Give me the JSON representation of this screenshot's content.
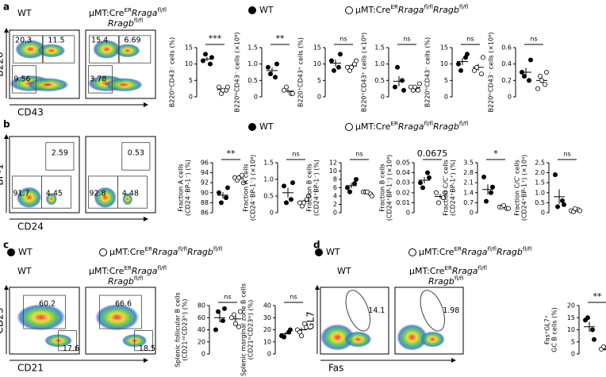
{
  "wt": "WT",
  "genotype": [
    {
      "text": "μMT:Cre",
      "style": "normal"
    },
    {
      "text": "ER",
      "style": "sup"
    },
    {
      "text": "Rraga",
      "style": "italic"
    },
    {
      "text": "fl/fl",
      "style": "sup"
    },
    {
      "text": "Rragb",
      "style": "italic"
    },
    {
      "text": "fl/fl",
      "style": "sup"
    }
  ],
  "panels": [
    {
      "label": "a",
      "ylabel": "B220",
      "xlabel": "CD43",
      "gates": [
        [
          20.3,
          11.5,
          9.56
        ],
        [
          15.4,
          6.69,
          3.78
        ]
      ]
    },
    {
      "label": "b",
      "ylabel": "BP-1",
      "xlabel": "CD24",
      "gates": [
        [
          2.59,
          91.7,
          4.45
        ],
        [
          0.53,
          92.8,
          4.48
        ]
      ]
    },
    {
      "label": "c",
      "ylabel": "CD23",
      "xlabel": "CD21",
      "gates": [
        [
          60.2,
          17.6
        ],
        [
          66.6,
          18.5
        ]
      ]
    },
    {
      "label": "d",
      "ylabel": "GL7",
      "xlabel": "Fas",
      "gates": [
        [
          14.1
        ],
        [
          1.98
        ]
      ]
    }
  ],
  "chart_data": [
    {
      "type": "strip",
      "ylabel": [
        "B220ˡᵒCD43⁻ cells (%)"
      ],
      "ylim": [
        0,
        15
      ],
      "yticks": [
        0,
        5,
        10,
        15
      ],
      "sig": "***",
      "series": [
        {
          "filled": true,
          "values": [
            11,
            10,
            13,
            12
          ]
        },
        {
          "filled": false,
          "values": [
            3,
            2,
            1,
            3,
            2
          ]
        }
      ]
    },
    {
      "type": "strip",
      "ylabel": [
        "B220ˡᵒCD43⁻ cells (×10⁶)"
      ],
      "ylim": [
        0,
        1.5
      ],
      "yticks": [
        0,
        0.5,
        {
          "value": 1,
          "label": "1.0"
        },
        1.5
      ],
      "sig": "**",
      "series": [
        {
          "filled": true,
          "values": [
            0.9,
            0.6,
            0.7,
            1.0
          ]
        },
        {
          "filled": false,
          "values": [
            0.2,
            0.1,
            0.3,
            0.1
          ]
        }
      ]
    },
    {
      "type": "strip",
      "ylabel": [
        "B220⁺CD43⁺ cells (%)"
      ],
      "ylim": [
        0,
        15
      ],
      "yticks": [
        0,
        5,
        10,
        15
      ],
      "sig": "ns",
      "series": [
        {
          "filled": true,
          "values": [
            11,
            9,
            8,
            13
          ]
        },
        {
          "filled": false,
          "values": [
            9,
            10,
            8,
            11,
            9
          ]
        }
      ]
    },
    {
      "type": "strip",
      "ylabel": [
        "B220⁺CD43⁺ cells (×10⁶)"
      ],
      "ylim": [
        0,
        1.5
      ],
      "yticks": [
        0,
        0.5,
        {
          "value": 1,
          "label": "1.0"
        },
        1.5
      ],
      "sig": "ns",
      "series": [
        {
          "filled": true,
          "values": [
            0.3,
            0.5,
            0.9,
            0.2
          ]
        },
        {
          "filled": false,
          "values": [
            0.3,
            0.2,
            0.2,
            0.4,
            0.3
          ]
        }
      ]
    },
    {
      "type": "strip",
      "ylabel": [
        "B220ʰⁱCD43⁻ cells (%)"
      ],
      "ylim": [
        0,
        15
      ],
      "yticks": [
        0,
        5,
        10,
        15
      ],
      "sig": "ns",
      "series": [
        {
          "filled": true,
          "values": [
            10,
            12,
            8,
            13
          ]
        },
        {
          "filled": false,
          "values": [
            8,
            7,
            9,
            12
          ]
        }
      ]
    },
    {
      "type": "strip",
      "ylabel": [
        "B220ʰⁱCD43⁻ cells (×10⁶)"
      ],
      "ylim": [
        0,
        0.6
      ],
      "yticks": [
        0,
        0.2,
        0.4,
        0.6
      ],
      "sig": "ns",
      "series": [
        {
          "filled": true,
          "values": [
            0.3,
            0.2,
            0.25,
            0.45
          ]
        },
        {
          "filled": false,
          "values": [
            0.1,
            0.15,
            0.25,
            0.3,
            0.2
          ]
        }
      ]
    },
    {
      "type": "strip",
      "ylabel": [
        "Fraction A cells",
        "(CD24⁻BP-1⁻) (%)"
      ],
      "ylim": [
        86,
        96
      ],
      "yticks": [
        86,
        88,
        90,
        92,
        94,
        96
      ],
      "sig": "**",
      "series": [
        {
          "filled": true,
          "values": [
            90,
            89,
            88,
            91
          ]
        },
        {
          "filled": false,
          "values": [
            93,
            93.5,
            92.5,
            92,
            93
          ]
        }
      ]
    },
    {
      "type": "strip",
      "ylabel": [
        "Fraction A cells",
        "(CD24⁻BP-1⁻) (×10⁶)"
      ],
      "ylim": [
        0,
        1.5
      ],
      "yticks": [
        0,
        0.5,
        {
          "value": 1,
          "label": "1.0"
        },
        1.5
      ],
      "sig": "ns",
      "series": [
        {
          "filled": true,
          "values": [
            0.8,
            0.4,
            0.3,
            0.9
          ]
        },
        {
          "filled": false,
          "values": [
            0.3,
            0.4,
            0.2,
            0.5,
            0.3
          ]
        }
      ]
    },
    {
      "type": "strip",
      "ylabel": [
        "Fraction B cells",
        "(CD24⁺BP-1⁻) (%)"
      ],
      "ylim": [
        0,
        12
      ],
      "yticks": [
        0,
        2,
        4,
        6,
        8,
        10,
        12
      ],
      "sig": "ns",
      "series": [
        {
          "filled": true,
          "values": [
            6,
            7,
            5,
            8
          ]
        },
        {
          "filled": false,
          "values": [
            5,
            4.5,
            5,
            4,
            5
          ]
        }
      ]
    },
    {
      "type": "strip",
      "ylabel": [
        "Fraction B cells",
        "(CD24⁺BP-1⁻) (×10⁶)"
      ],
      "ylim": [
        0,
        0.05
      ],
      "yticks": [
        0,
        0.01,
        0.02,
        0.03,
        0.04,
        0.05
      ],
      "sig": "0.0675",
      "series": [
        {
          "filled": true,
          "values": [
            0.03,
            0.04,
            0.025,
            0.035
          ]
        },
        {
          "filled": false,
          "values": [
            0.02,
            0.015,
            0.01,
            0.02
          ]
        }
      ]
    },
    {
      "type": "strip",
      "ylabel": [
        "Fraction C/C′ cells",
        "(CD24⁺BP-1⁺) (%)"
      ],
      "ylim": [
        0,
        3.5
      ],
      "yticks": [
        0,
        0.7,
        1.4,
        2.1,
        2.8,
        3.5
      ],
      "sig": "*",
      "series": [
        {
          "filled": true,
          "values": [
            2.5,
            1.4,
            0.8,
            1.8
          ]
        },
        {
          "filled": false,
          "values": [
            0.4,
            0.3,
            0.4,
            0.3,
            0.5
          ]
        }
      ]
    },
    {
      "type": "strip",
      "ylabel": [
        "Fraction C/C′ cells",
        "(CD24⁺BP-1⁺) (×10⁴)"
      ],
      "ylim": [
        0,
        2.5
      ],
      "yticks": [
        0,
        0.5,
        {
          "value": 1,
          "label": "1.0"
        },
        1.5,
        {
          "value": 2,
          "label": "2.0"
        },
        2.5
      ],
      "sig": "ns",
      "series": [
        {
          "filled": true,
          "values": [
            1.9,
            0.6,
            0.3,
            0.4
          ]
        },
        {
          "filled": false,
          "values": [
            0.1,
            0.15,
            0.05,
            0.1,
            0.2
          ]
        }
      ]
    },
    {
      "type": "strip",
      "ylabel": [
        "Splenic follicular B cells",
        "(CD21ⁱⁿᵗCD23ʰⁱ) (%)"
      ],
      "ylim": [
        0,
        80
      ],
      "yticks": [
        0,
        20,
        40,
        60,
        80
      ],
      "sig": "ns",
      "series": [
        {
          "filled": true,
          "values": [
            40,
            55,
            70,
            75
          ]
        },
        {
          "filled": false,
          "values": [
            60,
            45,
            65,
            70,
            50
          ]
        }
      ]
    },
    {
      "type": "strip",
      "ylabel": [
        "Splenic marginal zone B cells",
        "(CD21ʰⁱCD23ˡᵒ) (%)"
      ],
      "ylim": [
        0,
        40
      ],
      "yticks": [
        0,
        10,
        20,
        30,
        40
      ],
      "sig": "ns",
      "series": [
        {
          "filled": true,
          "values": [
            15,
            18,
            14,
            20
          ]
        },
        {
          "filled": false,
          "values": [
            20,
            25,
            18,
            22,
            15
          ]
        }
      ]
    },
    {
      "type": "strip",
      "ylabel": [
        "Fas⁺GL7⁺",
        "GC B cells (%)"
      ],
      "ylim": [
        0,
        20
      ],
      "yticks": [
        0,
        5,
        10,
        15,
        20
      ],
      "sig": "**",
      "series": [
        {
          "filled": true,
          "values": [
            14,
            10,
            15,
            6
          ]
        },
        {
          "filled": false,
          "values": [
            2,
            1,
            3,
            1.5
          ]
        }
      ]
    }
  ]
}
